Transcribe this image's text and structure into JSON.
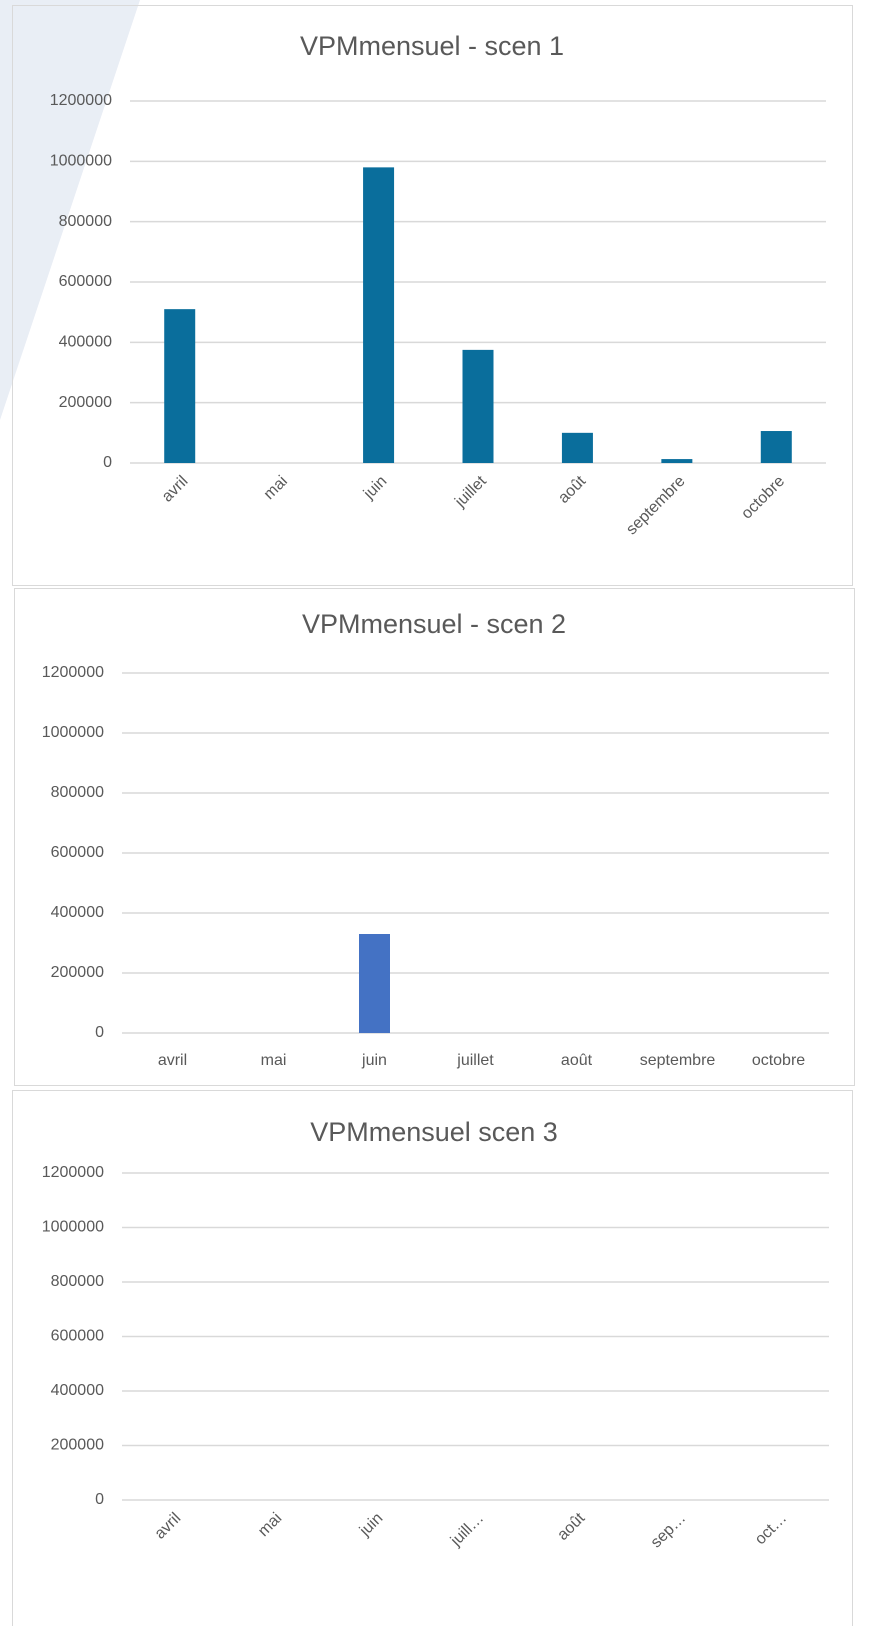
{
  "chart_data": [
    {
      "type": "bar",
      "title": "VPMmensuel - scen 1",
      "categories": [
        "avril",
        "mai",
        "juin",
        "juillet",
        "août",
        "septembre",
        "octobre"
      ],
      "values": [
        510000,
        0,
        980000,
        375000,
        100000,
        13000,
        106000
      ],
      "color": "#0a6e9c",
      "ylim": [
        0,
        1200000
      ],
      "yticks": [
        0,
        200000,
        400000,
        600000,
        800000,
        1000000,
        1200000
      ],
      "grid": true
    },
    {
      "type": "bar",
      "title": "VPMmensuel - scen 2",
      "categories": [
        "avril",
        "mai",
        "juin",
        "juillet",
        "août",
        "septembre",
        "octobre"
      ],
      "values": [
        0,
        0,
        330000,
        0,
        0,
        0,
        0
      ],
      "color": "#4472c4",
      "ylim": [
        0,
        1200000
      ],
      "yticks": [
        0,
        200000,
        400000,
        600000,
        800000,
        1000000,
        1200000
      ],
      "grid": true
    },
    {
      "type": "bar",
      "title": "VPMmensuel scen 3",
      "categories": [
        "avril",
        "mai",
        "juin",
        "juill…",
        "août",
        "sep…",
        "oct…"
      ],
      "values": [
        0,
        0,
        0,
        0,
        0,
        0,
        0
      ],
      "color": "#4472c4",
      "ylim": [
        0,
        1200000
      ],
      "yticks": [
        0,
        200000,
        400000,
        600000,
        800000,
        1000000,
        1200000
      ],
      "grid": true
    }
  ]
}
